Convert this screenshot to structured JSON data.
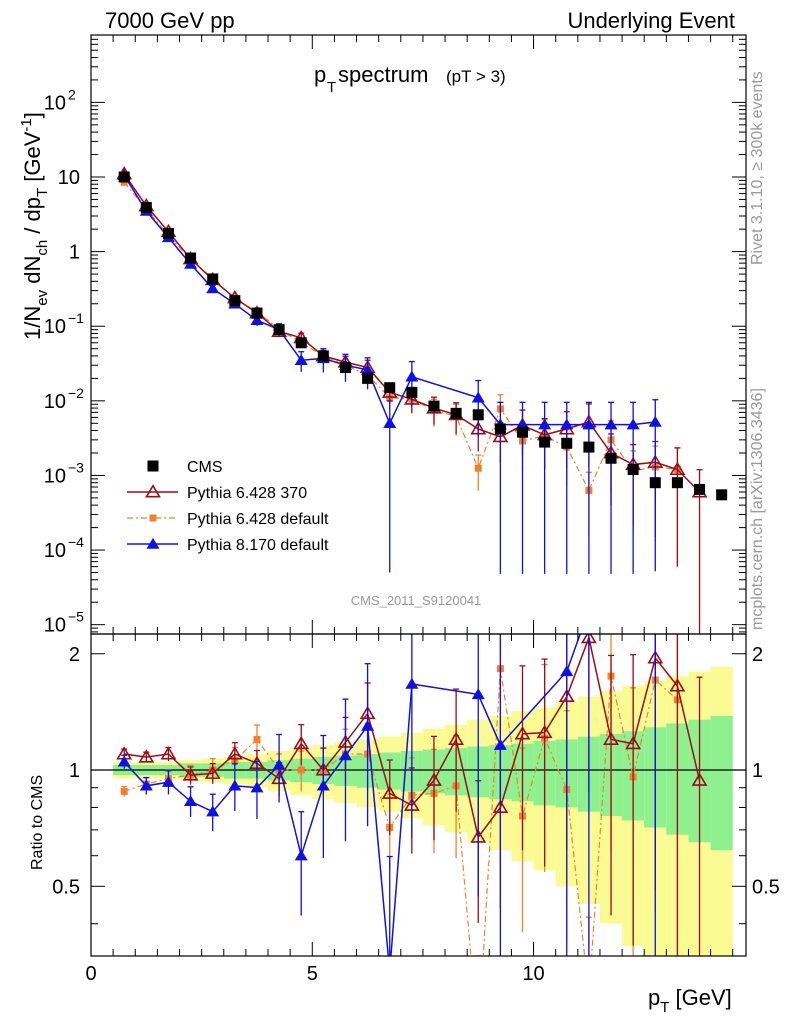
{
  "header": {
    "left": "7000 GeV pp",
    "right": "Underlying Event"
  },
  "side": {
    "rivet": "Rivet 3.1.10, ≥ 300k events",
    "mcplots": "mcplots.cern.ch [arXiv:1306.3436]"
  },
  "chart_data": {
    "type": "scatter",
    "title": "p_T spectrum (pT > 3)",
    "title_main": "p",
    "title_sub": "T",
    "title_rest": " spectrum",
    "title_cut": "(pT >  3)",
    "analysis": "CMS_2011_S9120041",
    "xlabel": "p_T [GeV]",
    "ylabel": "1/N_ev dN_ch / dp_T [GeV^-1]",
    "ratio_ylabel": "Ratio to CMS",
    "xlim": [
      0,
      14.8
    ],
    "ylim": [
      7.5e-06,
      800
    ],
    "yscale": "log",
    "ratio_ylim": [
      0.33,
      2.25
    ],
    "ratio_yscale": "log",
    "xticks": [
      0,
      5,
      10
    ],
    "ratio_ticks": [
      0.5,
      1,
      2
    ],
    "legend_position": "center-left",
    "colors": {
      "cms": "#000000",
      "p6_370": "#9b0d16",
      "p6_default": "#f2812f",
      "p8": "#1010e0",
      "band_inner": "#8ef08e",
      "band_outer": "#fbfb94"
    },
    "x": [
      0.75,
      1.25,
      1.75,
      2.25,
      2.75,
      3.25,
      3.75,
      4.25,
      4.75,
      5.25,
      5.75,
      6.25,
      6.75,
      7.25,
      7.75,
      8.25,
      8.75,
      9.25,
      9.75,
      10.25,
      10.75,
      11.25,
      11.75,
      12.25,
      12.75,
      13.25,
      13.75,
      14.25
    ],
    "series": [
      {
        "name": "CMS",
        "key": "cms",
        "marker": "square",
        "values": [
          10,
          3.9,
          1.75,
          0.82,
          0.43,
          0.22,
          0.15,
          0.09,
          0.06,
          0.04,
          0.028,
          0.02,
          0.015,
          0.013,
          0.0085,
          0.0068,
          0.0065,
          0.0042,
          0.0038,
          0.0028,
          0.0027,
          0.0024,
          0.0017,
          0.0012,
          0.0008,
          0.0008,
          0.00065,
          0.00055
        ]
      },
      {
        "name": "Pythia 6.428 370",
        "key": "p6_370",
        "marker": "open-triangle",
        "values": [
          11,
          4.1,
          1.85,
          0.8,
          0.42,
          0.24,
          0.15,
          0.085,
          0.07,
          0.04,
          0.033,
          0.028,
          0.013,
          0.0105,
          0.008,
          0.0065,
          0.0042,
          0.0033,
          0.0047,
          0.0035,
          0.0042,
          0.0052,
          0.002,
          0.0014,
          0.0015,
          0.0012,
          0.0006
        ],
        "err": [
          0.06,
          0.05,
          0.05,
          0.06,
          0.07,
          0.08,
          0.1,
          0.12,
          0.15,
          0.18,
          0.2,
          0.25,
          0.3,
          0.35,
          0.4,
          0.45,
          0.5,
          0.55,
          0.6,
          0.65,
          0.7,
          0.75,
          0.8,
          0.85,
          0.9,
          0.95,
          0.99
        ]
      },
      {
        "name": "Pythia 6.428 default",
        "key": "p6_default",
        "marker": "square",
        "values": [
          8.5,
          3.7,
          1.65,
          0.78,
          0.44,
          0.23,
          0.16,
          0.09,
          0.06,
          0.04,
          0.03,
          0.022,
          0.011,
          0.0105,
          0.0075,
          0.0062,
          0.00125,
          0.0078,
          0.0029,
          0.0034,
          0.0024,
          0.00063,
          0.003,
          0.00115,
          0.0013,
          0.0012
        ],
        "err": [
          0.06,
          0.05,
          0.05,
          0.06,
          0.07,
          0.08,
          0.1,
          0.12,
          0.15,
          0.18,
          0.2,
          0.25,
          0.3,
          0.35,
          0.4,
          0.45,
          0.5,
          0.55,
          0.6,
          0.65,
          0.7,
          0.75,
          0.8,
          0.85,
          0.9,
          0.95
        ]
      },
      {
        "name": "Pythia 8.170 default",
        "key": "p8",
        "marker": "triangle",
        "values": [
          10.5,
          3.5,
          1.55,
          0.68,
          0.32,
          0.2,
          0.12,
          0.09,
          0.035,
          0.037,
          0.03,
          0.026,
          0.005,
          0.021,
          null,
          null,
          0.011,
          0.0048,
          0.0048,
          0.0048,
          0.0048,
          0.0048,
          0.0048,
          0.0048,
          0.0052
        ],
        "err": [
          0.05,
          0.05,
          0.06,
          0.08,
          0.1,
          0.13,
          0.16,
          0.2,
          0.3,
          0.35,
          0.4,
          0.45,
          0.99,
          0.6,
          0,
          0,
          0.7,
          0.99,
          0.99,
          0.99,
          0.99,
          0.99,
          0.99,
          0.99,
          0.99
        ]
      }
    ],
    "ratio": {
      "p6_370": [
        1.1,
        1.08,
        1.1,
        0.97,
        0.98,
        1.1,
        1.04,
        0.95,
        1.17,
        1.0,
        1.18,
        1.4,
        0.87,
        0.81,
        0.94,
        1.2,
        0.67,
        0.8,
        1.24,
        1.25,
        1.55,
        2.2,
        1.2,
        1.17,
        1.95,
        1.65,
        0.94
      ],
      "p6_370_err": [
        0.03,
        0.03,
        0.04,
        0.05,
        0.06,
        0.07,
        0.08,
        0.1,
        0.12,
        0.14,
        0.16,
        0.2,
        0.22,
        0.25,
        0.3,
        0.35,
        0.4,
        0.45,
        0.5,
        0.55,
        0.6,
        0.6,
        0.65,
        0.7,
        0.75,
        0.8,
        0.85
      ],
      "p6_default": [
        0.88,
        0.92,
        0.95,
        0.97,
        1.0,
        1.06,
        1.2,
        1.0,
        1.0,
        1.0,
        1.1,
        1.1,
        0.71,
        0.86,
        0.87,
        0.91,
        0.2,
        1.83,
        0.76,
        1.21,
        0.89,
        0.26,
        1.75,
        0.96,
        1.71,
        1.52
      ],
      "p6_default_err": [
        0.03,
        0.04,
        0.05,
        0.06,
        0.07,
        0.08,
        0.09,
        0.1,
        0.12,
        0.14,
        0.16,
        0.2,
        0.22,
        0.25,
        0.3,
        0.35,
        0.4,
        0.45,
        0.5,
        0.55,
        0.6,
        0.6,
        0.65,
        0.7,
        0.75,
        0.8
      ],
      "p8": [
        1.05,
        0.91,
        0.93,
        0.83,
        0.78,
        0.91,
        0.9,
        1.03,
        0.6,
        0.91,
        1.09,
        1.3,
        0.3,
        1.67,
        null,
        null,
        1.57,
        1.16,
        null,
        null,
        1.8,
        2.6,
        null,
        null,
        6.5
      ],
      "p8_err": [
        0.04,
        0.05,
        0.07,
        0.09,
        0.11,
        0.14,
        0.17,
        0.2,
        0.3,
        0.35,
        0.4,
        0.45,
        0.99,
        0.6,
        0,
        0,
        0.7,
        0.99,
        0,
        0,
        0.99,
        0.99,
        0,
        0,
        0.99
      ],
      "band_inner": [
        0.03,
        0.03,
        0.03,
        0.04,
        0.04,
        0.05,
        0.05,
        0.06,
        0.07,
        0.08,
        0.09,
        0.1,
        0.11,
        0.12,
        0.13,
        0.14,
        0.15,
        0.16,
        0.17,
        0.19,
        0.2,
        0.22,
        0.24,
        0.26,
        0.29,
        0.32,
        0.35,
        0.38
      ],
      "band_outer": [
        0.05,
        0.05,
        0.05,
        0.06,
        0.07,
        0.08,
        0.1,
        0.12,
        0.14,
        0.16,
        0.18,
        0.2,
        0.22,
        0.25,
        0.28,
        0.31,
        0.35,
        0.38,
        0.42,
        0.45,
        0.5,
        0.55,
        0.6,
        0.65,
        0.7,
        0.75,
        0.8,
        0.85
      ]
    }
  }
}
